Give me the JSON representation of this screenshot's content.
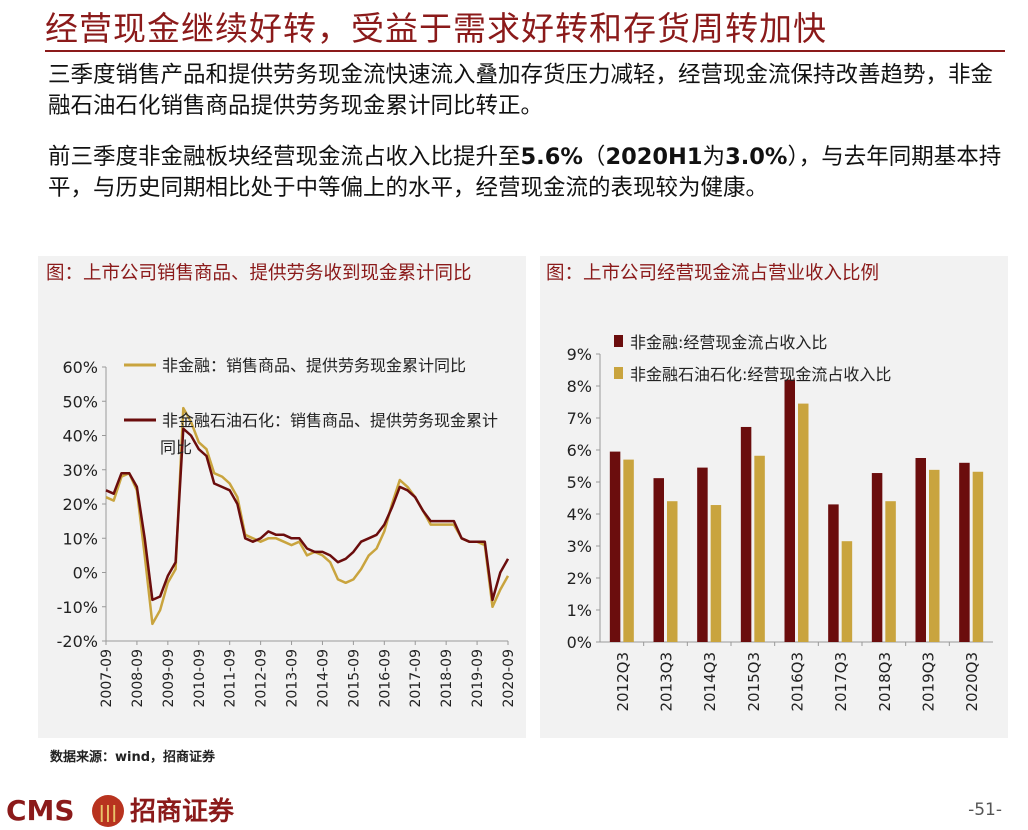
{
  "title": "经营现金继续好转，受益于需求好转和存货周转加快",
  "paragraphs": [
    "三季度销售产品和提供劳务现金流快速流入叠加存货压力减轻，经营现金流保持改善趋势，非金融石油石化销售商品提供劳务现金累计同比转正。",
    {
      "pre": "前三季度非金融板块经营现金流占收入比提升至",
      "b1": "5.6%",
      "mid": "（",
      "b2": "2020H1",
      "mid2": "为",
      "b3": "3.0%",
      "post": "），与去年同期基本持平，与历史同期相比处于中等偏上的水平，经营现金流的表现较为健康。"
    }
  ],
  "source": "数据来源：wind，招商证券",
  "page_number": "-51-",
  "logo": {
    "cms": "CMS",
    "name": "招商证券"
  },
  "colors": {
    "accent": "#8b1a1a",
    "gold": "#c9a43e",
    "dark_red": "#6b0d0d"
  },
  "chart_data": [
    {
      "type": "line",
      "title": "图：上市公司销售商品、提供劳务收到现金累计同比",
      "x_tick_labels": [
        "2007-09",
        "2008-09",
        "2009-09",
        "2010-09",
        "2011-09",
        "2012-09",
        "2013-09",
        "2014-09",
        "2015-09",
        "2016-09",
        "2017-09",
        "2018-09",
        "2019-09",
        "2020-09"
      ],
      "y_tick_labels": [
        "60%",
        "50%",
        "40%",
        "30%",
        "20%",
        "10%",
        "0%",
        "-10%",
        "-20%"
      ],
      "ylim": [
        -20,
        60
      ],
      "x_range": [
        2007.75,
        2020.75
      ],
      "series": [
        {
          "name": "非金融：销售商品、提供劳务现金累计同比",
          "color": "#c9a43e",
          "points": [
            [
              2007.75,
              22
            ],
            [
              2008.0,
              21
            ],
            [
              2008.25,
              28
            ],
            [
              2008.5,
              29
            ],
            [
              2008.75,
              24
            ],
            [
              2009.0,
              5
            ],
            [
              2009.25,
              -15
            ],
            [
              2009.5,
              -11
            ],
            [
              2009.75,
              -3
            ],
            [
              2010.0,
              1
            ],
            [
              2010.25,
              48
            ],
            [
              2010.5,
              44
            ],
            [
              2010.75,
              38
            ],
            [
              2011.0,
              36
            ],
            [
              2011.25,
              29
            ],
            [
              2011.5,
              28
            ],
            [
              2011.75,
              26
            ],
            [
              2012.0,
              22
            ],
            [
              2012.25,
              11
            ],
            [
              2012.5,
              10
            ],
            [
              2012.75,
              9
            ],
            [
              2013.0,
              10
            ],
            [
              2013.25,
              10
            ],
            [
              2013.5,
              9
            ],
            [
              2013.75,
              8
            ],
            [
              2014.0,
              9
            ],
            [
              2014.25,
              5
            ],
            [
              2014.5,
              6
            ],
            [
              2014.75,
              5
            ],
            [
              2015.0,
              3
            ],
            [
              2015.25,
              -2
            ],
            [
              2015.5,
              -3
            ],
            [
              2015.75,
              -2
            ],
            [
              2016.0,
              1
            ],
            [
              2016.25,
              5
            ],
            [
              2016.5,
              7
            ],
            [
              2016.75,
              12
            ],
            [
              2017.0,
              20
            ],
            [
              2017.25,
              27
            ],
            [
              2017.5,
              25
            ],
            [
              2017.75,
              22
            ],
            [
              2018.0,
              18
            ],
            [
              2018.25,
              14
            ],
            [
              2018.5,
              14
            ],
            [
              2018.75,
              14
            ],
            [
              2019.0,
              14
            ],
            [
              2019.25,
              10
            ],
            [
              2019.5,
              9
            ],
            [
              2019.75,
              9
            ],
            [
              2020.0,
              8
            ],
            [
              2020.25,
              -10
            ],
            [
              2020.5,
              -5
            ],
            [
              2020.75,
              -1
            ]
          ]
        },
        {
          "name": "非金融石油石化：销售商品、提供劳务现金累计同比",
          "color": "#6b0d0d",
          "points": [
            [
              2007.75,
              24
            ],
            [
              2008.0,
              23
            ],
            [
              2008.25,
              29
            ],
            [
              2008.5,
              29
            ],
            [
              2008.75,
              25
            ],
            [
              2009.0,
              10
            ],
            [
              2009.25,
              -8
            ],
            [
              2009.5,
              -7
            ],
            [
              2009.75,
              -1
            ],
            [
              2010.0,
              3
            ],
            [
              2010.25,
              42
            ],
            [
              2010.5,
              40
            ],
            [
              2010.75,
              36
            ],
            [
              2011.0,
              34
            ],
            [
              2011.25,
              26
            ],
            [
              2011.5,
              25
            ],
            [
              2011.75,
              24
            ],
            [
              2012.0,
              20
            ],
            [
              2012.25,
              10
            ],
            [
              2012.5,
              9
            ],
            [
              2012.75,
              10
            ],
            [
              2013.0,
              12
            ],
            [
              2013.25,
              11
            ],
            [
              2013.5,
              11
            ],
            [
              2013.75,
              10
            ],
            [
              2014.0,
              10
            ],
            [
              2014.25,
              7
            ],
            [
              2014.5,
              6
            ],
            [
              2014.75,
              6
            ],
            [
              2015.0,
              5
            ],
            [
              2015.25,
              3
            ],
            [
              2015.5,
              4
            ],
            [
              2015.75,
              6
            ],
            [
              2016.0,
              9
            ],
            [
              2016.25,
              10
            ],
            [
              2016.5,
              11
            ],
            [
              2016.75,
              14
            ],
            [
              2017.0,
              19
            ],
            [
              2017.25,
              25
            ],
            [
              2017.5,
              24
            ],
            [
              2017.75,
              22
            ],
            [
              2018.0,
              18
            ],
            [
              2018.25,
              15
            ],
            [
              2018.5,
              15
            ],
            [
              2018.75,
              15
            ],
            [
              2019.0,
              15
            ],
            [
              2019.25,
              10
            ],
            [
              2019.5,
              9
            ],
            [
              2019.75,
              9
            ],
            [
              2020.0,
              9
            ],
            [
              2020.25,
              -8
            ],
            [
              2020.5,
              0
            ],
            [
              2020.75,
              4
            ]
          ]
        }
      ]
    },
    {
      "type": "bar",
      "title": "图：上市公司经营现金流占营业收入比例",
      "categories": [
        "2012Q3",
        "2013Q3",
        "2014Q3",
        "2015Q3",
        "2016Q3",
        "2017Q3",
        "2018Q3",
        "2019Q3",
        "2020Q3"
      ],
      "y_tick_labels": [
        "9%",
        "8%",
        "7%",
        "6%",
        "5%",
        "4%",
        "3%",
        "2%",
        "1%",
        "0%"
      ],
      "ylim": [
        0,
        9
      ],
      "series": [
        {
          "name": "非金融:经营现金流占收入比",
          "color": "#6b0d0d",
          "values": [
            5.95,
            5.12,
            5.45,
            6.72,
            8.2,
            4.3,
            5.28,
            5.75,
            5.6
          ]
        },
        {
          "name": "非金融石油石化:经营现金流占收入比",
          "color": "#c9a43e",
          "values": [
            5.7,
            4.4,
            4.28,
            5.82,
            7.45,
            3.15,
            4.4,
            5.38,
            5.32
          ]
        }
      ]
    }
  ]
}
